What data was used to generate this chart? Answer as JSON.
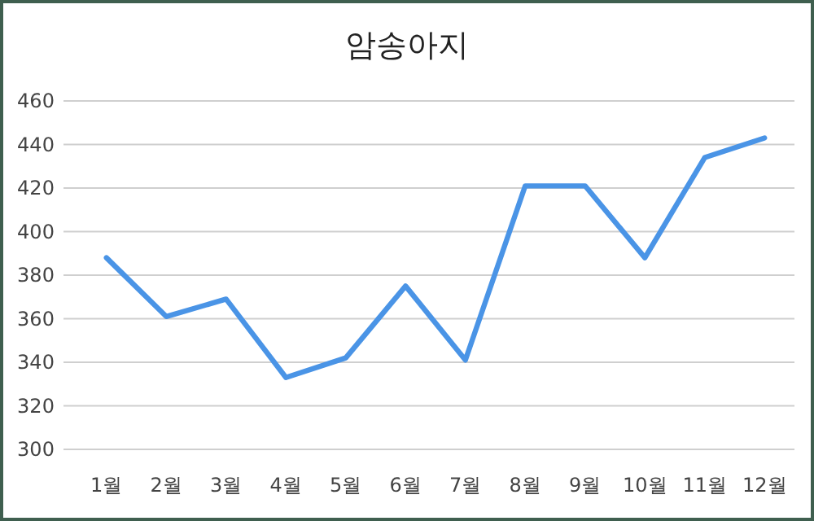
{
  "chart_data": {
    "type": "line",
    "title": "암송아지",
    "categories": [
      "1월",
      "2월",
      "3월",
      "4월",
      "5월",
      "6월",
      "7월",
      "8월",
      "9월",
      "10월",
      "11월",
      "12월"
    ],
    "series": [
      {
        "color": "#4a94e6",
        "values": [
          388,
          361,
          369,
          333,
          342,
          375,
          341,
          421,
          421,
          388,
          434,
          443
        ]
      }
    ],
    "ylim": [
      300,
      460
    ],
    "yticks": [
      300,
      320,
      340,
      360,
      380,
      400,
      420,
      440,
      460
    ],
    "grid": "y"
  }
}
